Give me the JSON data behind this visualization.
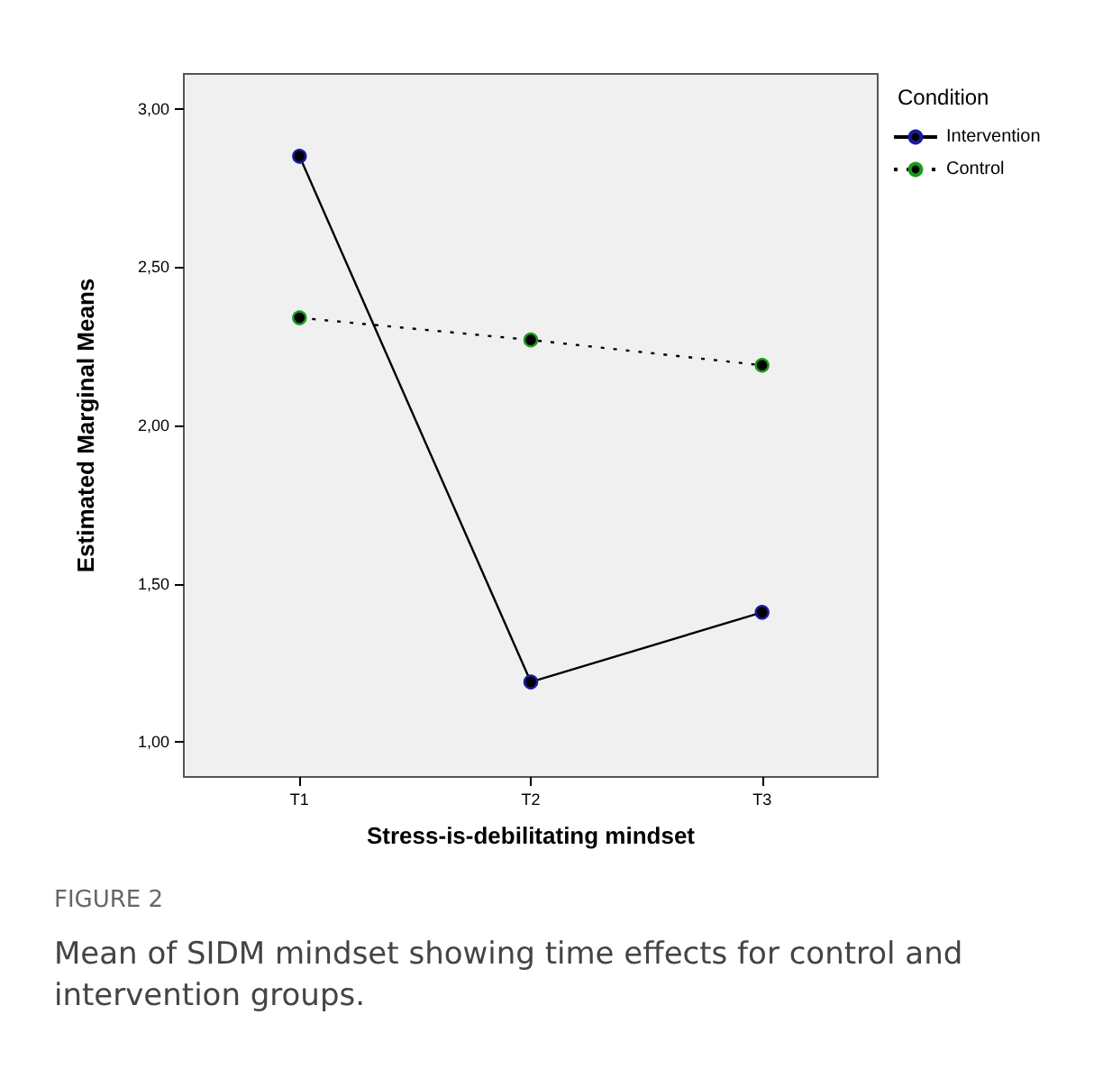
{
  "chart_data": {
    "type": "line",
    "xlabel": "Stress-is-debilitating mindset",
    "ylabel": "Estimated Marginal Means",
    "legend_title": "Condition",
    "categories": [
      "T1",
      "T2",
      "T3"
    ],
    "series": [
      {
        "name": "Intervention",
        "color": "#000000",
        "values": [
          2.85,
          1.19,
          1.41
        ],
        "line_style": "solid"
      },
      {
        "name": "Control",
        "color": "#000000",
        "values": [
          2.34,
          2.27,
          2.19
        ],
        "line_style": "dotted"
      }
    ],
    "ylim": [
      0.89,
      3.11
    ],
    "yticks": [
      {
        "value": 1,
        "label": "1,00"
      },
      {
        "value": 1.5,
        "label": "1,50"
      },
      {
        "value": 2,
        "label": "2,00"
      },
      {
        "value": 2.5,
        "label": "2,50"
      },
      {
        "value": 3,
        "label": "3,00"
      }
    ],
    "grid": false,
    "legend": "top right",
    "marker": "circle",
    "annotations": [
      "FIGURE 2",
      "Mean of SIDM mindset showing time effects for control and intervention groups."
    ]
  }
}
